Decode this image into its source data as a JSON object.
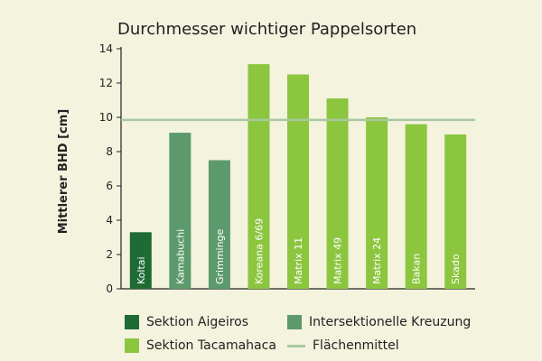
{
  "chart_data": {
    "type": "bar",
    "title": "Durchmesser wichtiger Pappelsorten",
    "ylabel": "Mittlerer BHD [cm]",
    "xlabel": "",
    "ylim": [
      0,
      14
    ],
    "yticks": [
      0,
      2,
      4,
      6,
      8,
      10,
      12,
      14
    ],
    "grid": false,
    "legend_position": "bottom",
    "categories": [
      "Koltai",
      "Kamabuchi",
      "Grimminge",
      "Koreana 6/69",
      "Matrix 11",
      "Matrix 49",
      "Matrix 24",
      "Bakan",
      "Skado"
    ],
    "values": [
      3.3,
      9.1,
      7.5,
      13.1,
      12.5,
      11.1,
      10.0,
      9.6,
      9.0
    ],
    "groups": [
      "aigeiros",
      "inter",
      "inter",
      "taca",
      "taca",
      "taca",
      "taca",
      "taca",
      "taca"
    ],
    "reference_line": {
      "name": "Flächenmittel",
      "value": 9.85,
      "color": "#a8c8a0"
    },
    "legend": [
      {
        "key": "aigeiros",
        "name": "Sektion Aigeiros",
        "color": "#1f6b35"
      },
      {
        "key": "inter",
        "name": "Intersektionelle Kreuzung",
        "color": "#5c9a6c"
      },
      {
        "key": "taca",
        "name": "Sektion Tacamahaca",
        "color": "#8cc63f"
      },
      {
        "key": "line",
        "name": "Flächenmittel",
        "color": "#a8c8a0"
      }
    ]
  }
}
